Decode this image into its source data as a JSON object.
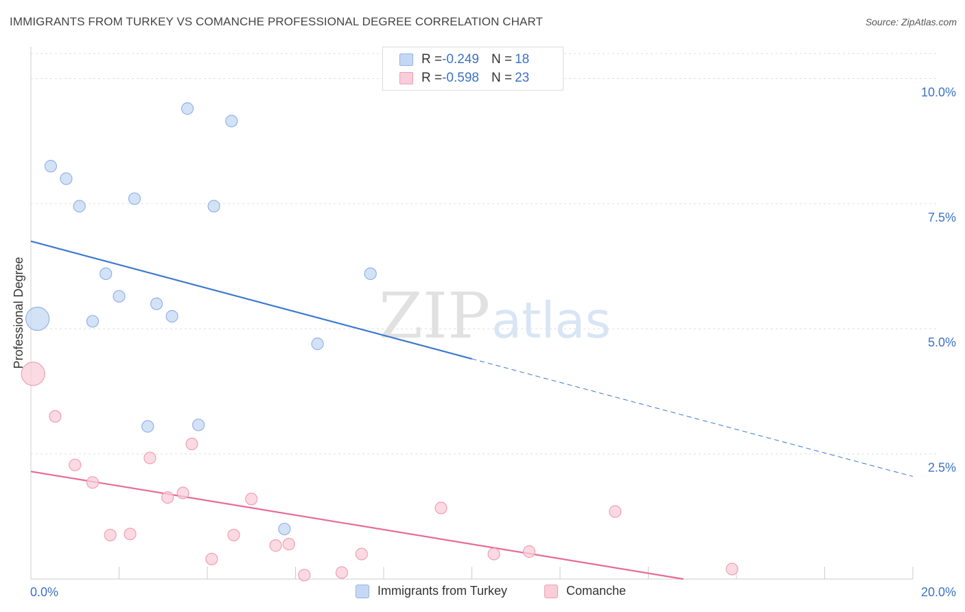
{
  "header": {
    "title": "IMMIGRANTS FROM TURKEY VS COMANCHE PROFESSIONAL DEGREE CORRELATION CHART",
    "source": "Source: ZipAtlas.com"
  },
  "watermark": {
    "zip": "ZIP",
    "atlas": "atlas"
  },
  "legend_top": {
    "rows": [
      {
        "r_label": "R = ",
        "r_value": "-0.249",
        "n_label": "N = ",
        "n_value": "18"
      },
      {
        "r_label": "R = ",
        "r_value": "-0.598",
        "n_label": "N = ",
        "n_value": "23"
      }
    ]
  },
  "legend_bottom": {
    "items": [
      "Immigrants from Turkey",
      "Comanche"
    ]
  },
  "colors": {
    "blue_fill": "#c5d8f3",
    "blue_stroke": "#8fb3e6",
    "blue_line": "#3a78cf",
    "pink_fill": "#f9cdd9",
    "pink_stroke": "#ef9fb5",
    "pink_line": "#e86a94",
    "axis_text": "#3a72c4",
    "grid": "#dddddd"
  },
  "chart_data": {
    "type": "scatter",
    "title": "IMMIGRANTS FROM TURKEY VS COMANCHE PROFESSIONAL DEGREE CORRELATION CHART",
    "xlabel": "",
    "ylabel": "Professional Degree",
    "xlim": [
      0,
      20
    ],
    "ylim": [
      0,
      10.5
    ],
    "x_tick_labels": [
      "0.0%",
      "20.0%"
    ],
    "y_ticks": [
      2.5,
      5.0,
      7.5,
      10.0
    ],
    "y_tick_labels": [
      "2.5%",
      "5.0%",
      "7.5%",
      "10.0%"
    ],
    "grid": true,
    "legend_position": "top-center",
    "series": [
      {
        "name": "Immigrants from Turkey",
        "color": "#8fb3e6",
        "points": [
          {
            "x": 0.15,
            "y": 5.2,
            "size": "large"
          },
          {
            "x": 0.45,
            "y": 8.25
          },
          {
            "x": 0.8,
            "y": 8.0
          },
          {
            "x": 1.1,
            "y": 7.45
          },
          {
            "x": 2.35,
            "y": 7.6
          },
          {
            "x": 3.55,
            "y": 9.4
          },
          {
            "x": 4.55,
            "y": 9.15
          },
          {
            "x": 4.15,
            "y": 7.45
          },
          {
            "x": 1.7,
            "y": 6.1
          },
          {
            "x": 2.0,
            "y": 5.65
          },
          {
            "x": 2.85,
            "y": 5.5
          },
          {
            "x": 3.2,
            "y": 5.25
          },
          {
            "x": 1.4,
            "y": 5.15
          },
          {
            "x": 7.7,
            "y": 6.1
          },
          {
            "x": 6.5,
            "y": 4.7
          },
          {
            "x": 2.65,
            "y": 3.05
          },
          {
            "x": 3.8,
            "y": 3.08
          },
          {
            "x": 5.75,
            "y": 1.0
          }
        ],
        "trend": {
          "x0": 0,
          "y0": 6.75,
          "x1": 10.0,
          "y1": 4.4,
          "dashed_to_x": 20.0,
          "dashed_to_y": 2.05
        }
      },
      {
        "name": "Comanche",
        "color": "#ef9fb5",
        "points": [
          {
            "x": 0.05,
            "y": 4.1,
            "size": "large"
          },
          {
            "x": 0.55,
            "y": 3.25
          },
          {
            "x": 1.0,
            "y": 2.28
          },
          {
            "x": 1.4,
            "y": 1.93
          },
          {
            "x": 2.7,
            "y": 2.42
          },
          {
            "x": 3.65,
            "y": 2.7
          },
          {
            "x": 3.1,
            "y": 1.63
          },
          {
            "x": 3.45,
            "y": 1.72
          },
          {
            "x": 5.0,
            "y": 1.6
          },
          {
            "x": 1.8,
            "y": 0.88
          },
          {
            "x": 2.25,
            "y": 0.9
          },
          {
            "x": 4.6,
            "y": 0.88
          },
          {
            "x": 5.55,
            "y": 0.67
          },
          {
            "x": 5.85,
            "y": 0.7
          },
          {
            "x": 4.1,
            "y": 0.4
          },
          {
            "x": 7.5,
            "y": 0.5
          },
          {
            "x": 9.3,
            "y": 1.42
          },
          {
            "x": 10.5,
            "y": 0.5
          },
          {
            "x": 11.3,
            "y": 0.55
          },
          {
            "x": 13.25,
            "y": 1.35
          },
          {
            "x": 6.2,
            "y": 0.08
          },
          {
            "x": 7.05,
            "y": 0.13
          },
          {
            "x": 15.9,
            "y": 0.2
          }
        ],
        "trend": {
          "x0": 0,
          "y0": 2.15,
          "x1": 14.8,
          "y1": 0.0
        }
      }
    ]
  }
}
